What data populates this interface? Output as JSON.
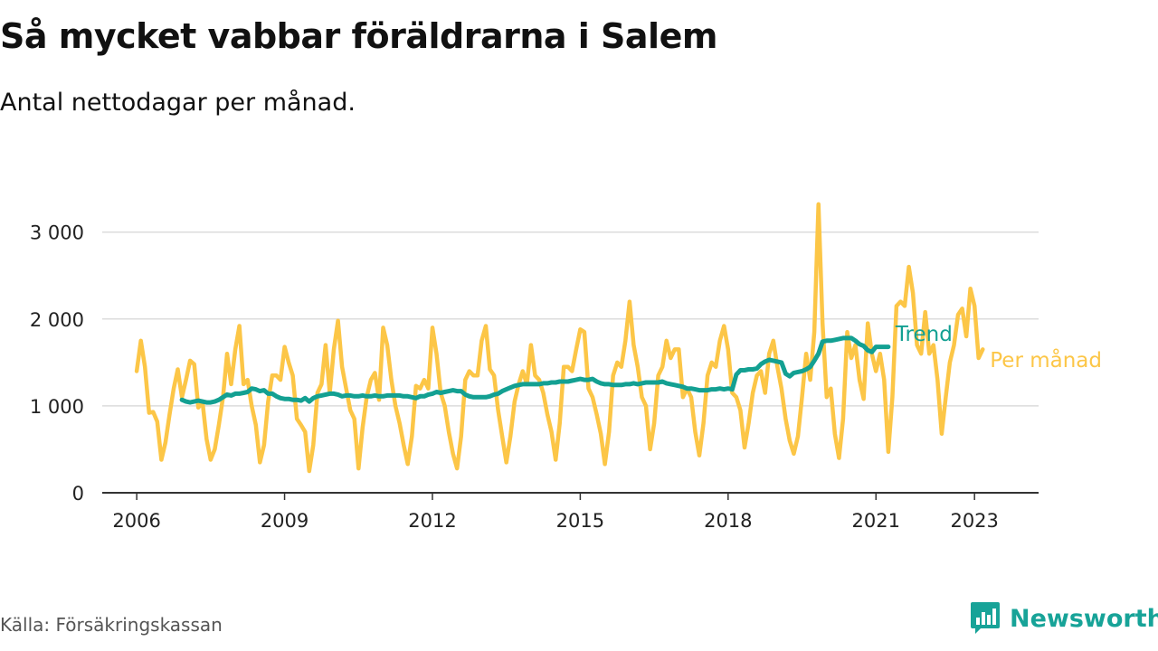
{
  "title": "Så mycket vabbar föräldrarna i Salem",
  "subtitle": "Antal nettodagar per månad.",
  "source": "Källa: Försäkringskassan",
  "brand": "Newsworthy",
  "colors": {
    "trend": "#13a092",
    "monthly": "#fcc647",
    "grid": "#dcdcdc",
    "axis": "#333333",
    "brand": "#17a398"
  },
  "chart_data": {
    "type": "line",
    "title": "Så mycket vabbar föräldrarna i Salem",
    "subtitle": "Antal nettodagar per månad.",
    "xlabel": "",
    "ylabel": "",
    "x_ticks": [
      "2006",
      "2009",
      "2012",
      "2015",
      "2018",
      "2021",
      "2023"
    ],
    "y_ticks": [
      "0",
      "1 000",
      "2 000",
      "3 000"
    ],
    "ylim": [
      0,
      3400
    ],
    "grid": "horizontal",
    "legend": "labels at right end of lines",
    "series": [
      {
        "name": "Per månad",
        "start": "2006-01",
        "values": [
          1400,
          1750,
          1450,
          920,
          930,
          820,
          380,
          580,
          900,
          1200,
          1420,
          1100,
          1300,
          1520,
          1480,
          980,
          1050,
          620,
          380,
          500,
          780,
          1100,
          1600,
          1250,
          1650,
          1920,
          1250,
          1300,
          1000,
          780,
          350,
          550,
          1050,
          1350,
          1350,
          1300,
          1680,
          1500,
          1350,
          850,
          780,
          700,
          250,
          550,
          1150,
          1250,
          1700,
          1150,
          1650,
          1980,
          1450,
          1200,
          950,
          850,
          280,
          750,
          1100,
          1300,
          1380,
          1070,
          1900,
          1700,
          1300,
          1000,
          800,
          550,
          330,
          650,
          1230,
          1200,
          1300,
          1200,
          1900,
          1600,
          1150,
          1000,
          700,
          450,
          280,
          650,
          1300,
          1400,
          1350,
          1350,
          1750,
          1920,
          1420,
          1350,
          950,
          650,
          350,
          650,
          1050,
          1250,
          1400,
          1250,
          1700,
          1350,
          1300,
          1150,
          900,
          700,
          380,
          800,
          1450,
          1450,
          1400,
          1650,
          1880,
          1850,
          1200,
          1100,
          900,
          680,
          330,
          700,
          1350,
          1500,
          1450,
          1750,
          2200,
          1700,
          1450,
          1100,
          1000,
          500,
          800,
          1350,
          1450,
          1750,
          1550,
          1650,
          1650,
          1100,
          1200,
          1100,
          700,
          430,
          800,
          1350,
          1500,
          1450,
          1750,
          1920,
          1650,
          1150,
          1100,
          950,
          520,
          800,
          1150,
          1350,
          1400,
          1150,
          1600,
          1750,
          1450,
          1200,
          850,
          600,
          450,
          650,
          1100,
          1600,
          1300,
          1850,
          3320,
          1950,
          1100,
          1200,
          680,
          400,
          850,
          1850,
          1550,
          1700,
          1300,
          1080,
          1950,
          1600,
          1400,
          1600,
          1300,
          470,
          1100,
          2150,
          2200,
          2150,
          2600,
          2300,
          1700,
          1600,
          2080,
          1600,
          1700,
          1300,
          680,
          1100,
          1500,
          1700,
          2050,
          2120,
          1800,
          2350,
          2150,
          1550,
          1650
        ]
      },
      {
        "name": "Trend",
        "start": "2006-12",
        "values": [
          1070,
          1050,
          1040,
          1050,
          1060,
          1050,
          1040,
          1040,
          1050,
          1070,
          1100,
          1130,
          1120,
          1140,
          1140,
          1150,
          1160,
          1200,
          1190,
          1170,
          1180,
          1140,
          1140,
          1110,
          1090,
          1080,
          1080,
          1070,
          1070,
          1060,
          1090,
          1050,
          1090,
          1110,
          1120,
          1130,
          1140,
          1140,
          1130,
          1110,
          1120,
          1120,
          1110,
          1110,
          1120,
          1110,
          1110,
          1120,
          1110,
          1110,
          1120,
          1120,
          1120,
          1120,
          1110,
          1110,
          1100,
          1090,
          1110,
          1110,
          1130,
          1140,
          1160,
          1150,
          1160,
          1170,
          1180,
          1170,
          1170,
          1130,
          1110,
          1100,
          1100,
          1100,
          1100,
          1110,
          1130,
          1140,
          1170,
          1190,
          1210,
          1230,
          1240,
          1250,
          1250,
          1250,
          1250,
          1250,
          1260,
          1260,
          1270,
          1270,
          1280,
          1280,
          1280,
          1290,
          1300,
          1310,
          1300,
          1300,
          1310,
          1280,
          1260,
          1250,
          1250,
          1240,
          1240,
          1240,
          1250,
          1250,
          1260,
          1250,
          1260,
          1270,
          1270,
          1270,
          1270,
          1280,
          1260,
          1250,
          1240,
          1230,
          1220,
          1200,
          1200,
          1190,
          1180,
          1180,
          1180,
          1190,
          1190,
          1200,
          1190,
          1200,
          1190,
          1360,
          1410,
          1410,
          1420,
          1420,
          1430,
          1480,
          1510,
          1530,
          1520,
          1510,
          1500,
          1370,
          1340,
          1380,
          1390,
          1400,
          1420,
          1450,
          1520,
          1600,
          1740,
          1750,
          1750,
          1760,
          1770,
          1780,
          1780,
          1780,
          1750,
          1710,
          1690,
          1640,
          1620,
          1680,
          1680,
          1680,
          1680
        ]
      }
    ]
  }
}
